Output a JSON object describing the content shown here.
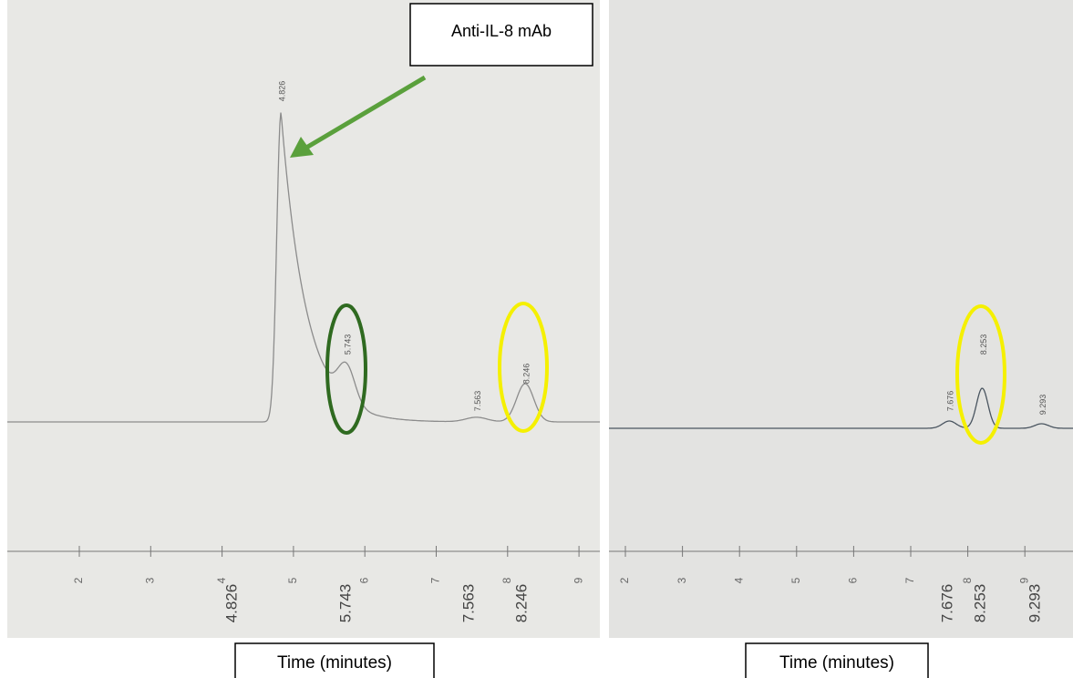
{
  "annotation": "Anti-IL-8 mAb",
  "panels": [
    {
      "axis_ticks": [
        2,
        3,
        4,
        5,
        6,
        7,
        8,
        9
      ],
      "peak_labels": [
        4.826,
        5.743,
        7.563,
        8.246
      ],
      "retention_times": [
        4.826,
        5.743,
        7.563,
        8.246
      ],
      "axis_label": "Time (minutes)"
    },
    {
      "axis_ticks": [
        2,
        3,
        4,
        5,
        6,
        7,
        8,
        9
      ],
      "peak_labels": [
        7.676,
        8.253,
        9.293
      ],
      "retention_times": [
        7.676,
        8.253,
        9.293
      ],
      "axis_label": "Time (minutes)"
    }
  ]
}
